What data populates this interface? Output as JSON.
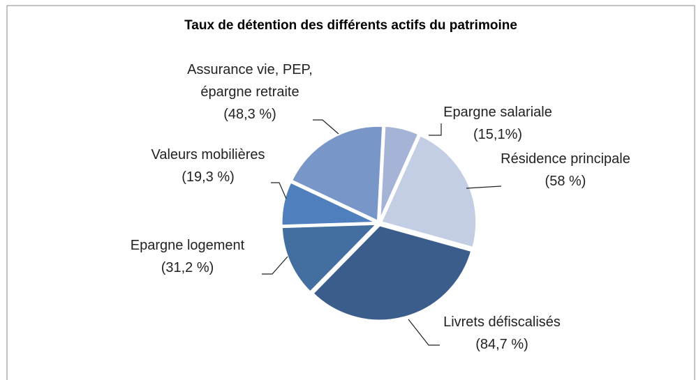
{
  "chart_data": {
    "type": "pie",
    "title": "Taux de détention des différents actifs du patrimoine",
    "categories": [
      "Epargne salariale (15,1%)",
      "Résidence principale (58 %)",
      "Livrets défiscalisés (84,7 %)",
      "Epargne logement (31,2 %)",
      "Valeurs mobilières (19,3 %)",
      "Assurance vie, PEP, épargne retraite (48,3 %)"
    ],
    "values": [
      15.1,
      58,
      84.7,
      31.2,
      19.3,
      48.3
    ],
    "colors": [
      "#a5b4d6",
      "#c3cde3",
      "#3b5d8c",
      "#436ea0",
      "#4f7fbd",
      "#7896c8"
    ]
  }
}
